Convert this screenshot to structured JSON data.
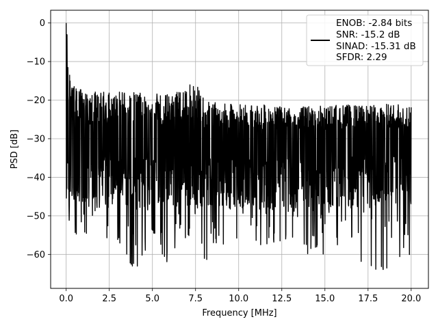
{
  "chart_data": {
    "type": "line",
    "title": "",
    "xlabel": "Frequency [MHz]",
    "ylabel": "PSD [dB]",
    "xlim": [
      -0.9,
      21.0
    ],
    "ylim": [
      -68.8,
      3.3
    ],
    "xticks": [
      0.0,
      2.5,
      5.0,
      7.5,
      10.0,
      12.5,
      15.0,
      17.5,
      20.0
    ],
    "xtick_labels": [
      "0.0",
      "2.5",
      "5.0",
      "7.5",
      "10.0",
      "12.5",
      "15.0",
      "17.5",
      "20.0"
    ],
    "yticks": [
      0,
      -10,
      -20,
      -30,
      -40,
      -50,
      -60
    ],
    "ytick_labels": [
      "0",
      "−10",
      "−20",
      "−30",
      "−40",
      "−50",
      "−60"
    ],
    "grid": true,
    "legend_position": "top-right",
    "legend_entries": [
      "ENOB: -2.84 bits",
      "SNR: -15.2 dB",
      "SINAD: -15.31 dB",
      "SFDR: 2.29"
    ],
    "series": [
      {
        "color": "#000000",
        "envelope_x": [
          0.0,
          0.3,
          1.0,
          2.0,
          3.0,
          4.0,
          5.0,
          6.0,
          6.5,
          7.0,
          7.3,
          7.5,
          7.8,
          8.0,
          9.0,
          10.0,
          11.0,
          12.0,
          13.0,
          14.0,
          15.0,
          16.0,
          17.0,
          18.0,
          19.0,
          20.0
        ],
        "envelope_upper": [
          0.0,
          -16.0,
          -17.5,
          -17.8,
          -17.5,
          -18.0,
          -18.2,
          -18.5,
          -17.5,
          -16.5,
          -15.5,
          -16.0,
          -17.5,
          -20.0,
          -21.0,
          -21.0,
          -21.0,
          -21.5,
          -22.0,
          -21.5,
          -21.5,
          -21.0,
          -21.5,
          -21.0,
          -21.0,
          -21.5
        ],
        "envelope_lower": [
          -50.0,
          -55.0,
          -56.0,
          -55.0,
          -58.0,
          -65.5,
          -55.0,
          -63.5,
          -55.0,
          -57.0,
          -52.0,
          -52.0,
          -57.0,
          -63.0,
          -58.0,
          -57.0,
          -58.0,
          -57.0,
          -56.0,
          -60.0,
          -60.0,
          -58.0,
          -62.0,
          -64.5,
          -65.0,
          -60.0
        ],
        "noise_center_db": -31.0,
        "dc_peak": {
          "x": 0.0,
          "y": 0.0
        }
      }
    ]
  }
}
